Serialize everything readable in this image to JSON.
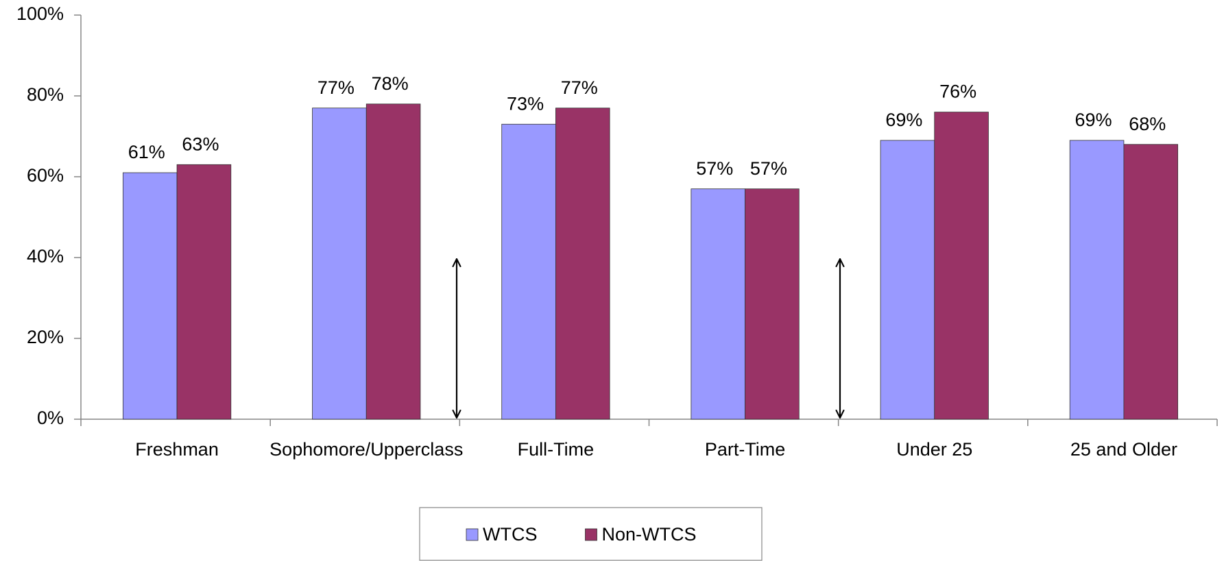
{
  "chart_data": {
    "type": "bar",
    "categories": [
      "Freshman",
      "Sophomore/Upperclass",
      "Full-Time",
      "Part-Time",
      "Under 25",
      "25 and Older"
    ],
    "series": [
      {
        "name": "WTCS",
        "color": "#9999ff",
        "values": [
          61,
          77,
          73,
          57,
          69,
          69
        ],
        "value_labels": [
          "61%",
          "77%",
          "73%",
          "57%",
          "69%",
          "69%"
        ]
      },
      {
        "name": "Non-WTCS",
        "color": "#993366",
        "values": [
          63,
          78,
          77,
          57,
          76,
          68
        ],
        "value_labels": [
          "63%",
          "78%",
          "77%",
          "57%",
          "76%",
          "68%"
        ]
      }
    ],
    "ylim": [
      0,
      100
    ],
    "yticks": [
      {
        "value": 0,
        "label": "0%"
      },
      {
        "value": 20,
        "label": "20%"
      },
      {
        "value": 40,
        "label": "40%"
      },
      {
        "value": 60,
        "label": "60%"
      },
      {
        "value": 80,
        "label": "80%"
      },
      {
        "value": 100,
        "label": "100%"
      }
    ],
    "legend": "bottom"
  }
}
